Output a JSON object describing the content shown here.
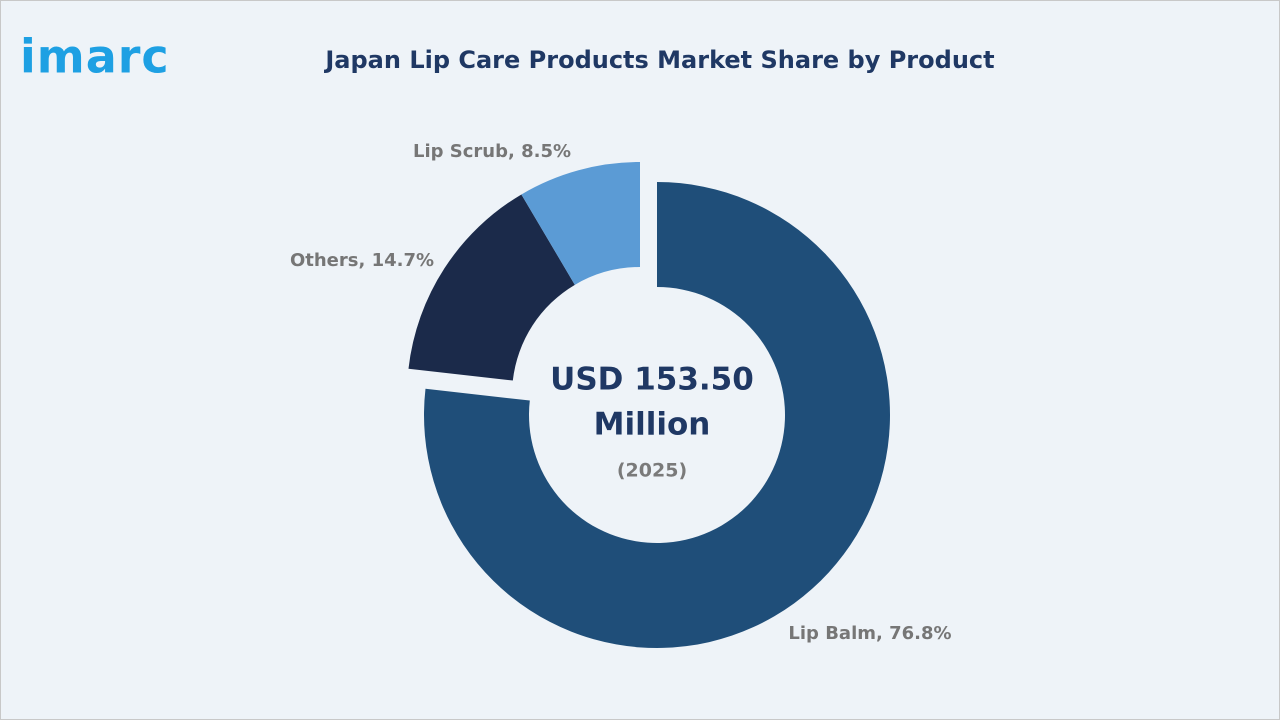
{
  "logo": "imarc",
  "chart_data": {
    "type": "donut",
    "title": "Japan Lip Care Products Market Share by Product",
    "values": [
      76.8,
      14.7,
      8.5
    ],
    "value_labels": [
      "Lip Balm, 76.8%",
      "Others, 14.7%",
      "Lip Scrub, 8.5%"
    ],
    "colors": [
      "#1f4e79",
      "#1b2a4a",
      "#5b9bd5"
    ],
    "center_text": [
      "USD 153.50",
      "Million"
    ],
    "center_subtext": "(2025)"
  }
}
